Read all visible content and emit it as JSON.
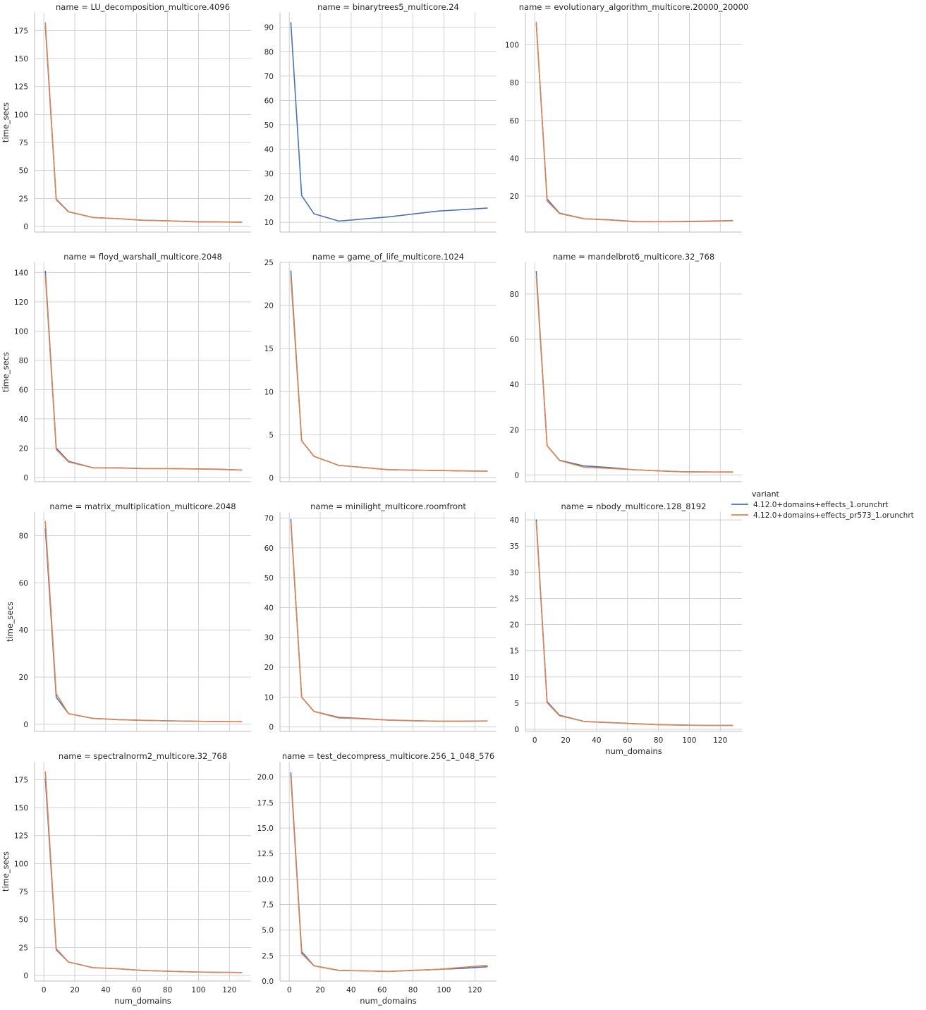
{
  "figure": {
    "legend": {
      "title": "variant",
      "placement": "right",
      "entries": [
        {
          "label": "4.12.0+domains+effects_1.orunchrt",
          "color": "#4c72b0"
        },
        {
          "label": "4.12.0+domains+effects_pr573_1.orunchrt",
          "color": "#dd8452"
        }
      ]
    },
    "grid": true,
    "style": "seaborn whitegrid facet grid"
  },
  "chart_data": [
    {
      "type": "line",
      "title": "name = LU_decomposition_multicore.4096",
      "xlabel": "",
      "ylabel": "time_secs",
      "xlim": [
        -6,
        134
      ],
      "ylim": [
        -5,
        191
      ],
      "xticks": [
        0,
        20,
        40,
        60,
        80,
        100,
        120
      ],
      "show_xticklabels": false,
      "yticks": [
        0,
        25,
        50,
        75,
        100,
        125,
        150,
        175
      ],
      "yticklabels": [
        "0",
        "25",
        "50",
        "75",
        "100",
        "125",
        "150",
        "175"
      ],
      "series": [
        {
          "name": "4.12.0+domains+effects_1.orunchrt",
          "color": "#4c72b0",
          "x": [
            1,
            8,
            16,
            32,
            48,
            64,
            80,
            96,
            112,
            128
          ],
          "y": [
            179,
            24,
            13,
            8,
            7,
            5.5,
            5,
            4.2,
            4,
            3.8
          ]
        },
        {
          "name": "4.12.0+domains+effects_pr573_1.orunchrt",
          "color": "#dd8452",
          "x": [
            1,
            8,
            16,
            32,
            48,
            64,
            80,
            96,
            112,
            128
          ],
          "y": [
            182,
            24.5,
            13.2,
            8,
            7,
            5.6,
            5,
            4.3,
            4.1,
            3.9
          ]
        }
      ]
    },
    {
      "type": "line",
      "title": "name = binarytrees5_multicore.24",
      "xlabel": "",
      "ylabel": "",
      "xlim": [
        -6,
        134
      ],
      "ylim": [
        6,
        96
      ],
      "xticks": [
        0,
        20,
        40,
        60,
        80,
        100,
        120
      ],
      "show_xticklabels": false,
      "yticks": [
        10,
        20,
        30,
        40,
        50,
        60,
        70,
        80,
        90
      ],
      "yticklabels": [
        "10",
        "20",
        "30",
        "40",
        "50",
        "60",
        "70",
        "80",
        "90"
      ],
      "series": [
        {
          "name": "4.12.0+domains+effects_1.orunchrt",
          "color": "#4c72b0",
          "x": [
            1,
            8,
            16,
            32,
            64,
            96,
            128
          ],
          "y": [
            92,
            21,
            13.5,
            10.5,
            12.2,
            14.6,
            15.8
          ]
        }
      ]
    },
    {
      "type": "line",
      "title": "name = evolutionary_algorithm_multicore.20000_20000",
      "xlabel": "",
      "ylabel": "",
      "xlim": [
        -6,
        134
      ],
      "ylim": [
        1,
        117
      ],
      "xticks": [
        0,
        20,
        40,
        60,
        80,
        100,
        120
      ],
      "show_xticklabels": false,
      "yticks": [
        20,
        40,
        60,
        80,
        100
      ],
      "yticklabels": [
        "20",
        "40",
        "60",
        "80",
        "100"
      ],
      "series": [
        {
          "name": "4.12.0+domains+effects_1.orunchrt",
          "color": "#4c72b0",
          "x": [
            1,
            8,
            16,
            32,
            48,
            64,
            80,
            96,
            112,
            128
          ],
          "y": [
            111,
            18.5,
            11,
            8,
            7.5,
            6.6,
            6.5,
            6.5,
            6.7,
            7
          ]
        },
        {
          "name": "4.12.0+domains+effects_pr573_1.orunchrt",
          "color": "#dd8452",
          "x": [
            1,
            8,
            16,
            32,
            48,
            64,
            80,
            96,
            112,
            128
          ],
          "y": [
            112,
            17.5,
            10.8,
            8,
            7.4,
            6.5,
            6.5,
            6.6,
            6.8,
            7.1
          ]
        }
      ]
    },
    {
      "type": "line",
      "title": "name = floyd_warshall_multicore.2048",
      "xlabel": "",
      "ylabel": "time_secs",
      "xlim": [
        -6,
        134
      ],
      "ylim": [
        -3,
        147
      ],
      "xticks": [
        0,
        20,
        40,
        60,
        80,
        100,
        120
      ],
      "show_xticklabels": false,
      "yticks": [
        0,
        20,
        40,
        60,
        80,
        100,
        120,
        140
      ],
      "yticklabels": [
        "0",
        "20",
        "40",
        "60",
        "80",
        "100",
        "120",
        "140"
      ],
      "series": [
        {
          "name": "4.12.0+domains+effects_1.orunchrt",
          "color": "#4c72b0",
          "x": [
            1,
            8,
            16,
            32,
            48,
            64,
            80,
            96,
            112,
            128
          ],
          "y": [
            141,
            20,
            11,
            6.5,
            6.5,
            6,
            6,
            5.8,
            5.6,
            5
          ]
        },
        {
          "name": "4.12.0+domains+effects_pr573_1.orunchrt",
          "color": "#dd8452",
          "x": [
            1,
            8,
            16,
            32,
            48,
            64,
            80,
            96,
            112,
            128
          ],
          "y": [
            138,
            19,
            10.5,
            6.5,
            6.4,
            6,
            6,
            5.8,
            5.5,
            5
          ]
        }
      ]
    },
    {
      "type": "line",
      "title": "name = game_of_life_multicore.1024",
      "xlabel": "",
      "ylabel": "",
      "xlim": [
        -6,
        134
      ],
      "ylim": [
        -0.45,
        25
      ],
      "xticks": [
        0,
        20,
        40,
        60,
        80,
        100,
        120
      ],
      "show_xticklabels": false,
      "yticks": [
        0,
        5,
        10,
        15,
        20,
        25
      ],
      "yticklabels": [
        "0",
        "5",
        "10",
        "15",
        "20",
        "25"
      ],
      "series": [
        {
          "name": "4.12.0+domains+effects_1.orunchrt",
          "color": "#4c72b0",
          "x": [
            1,
            8,
            16,
            32,
            48,
            64,
            80,
            96,
            112,
            128
          ],
          "y": [
            24,
            4.3,
            2.5,
            1.45,
            1.2,
            0.95,
            0.9,
            0.85,
            0.8,
            0.78
          ]
        },
        {
          "name": "4.12.0+domains+effects_pr573_1.orunchrt",
          "color": "#dd8452",
          "x": [
            1,
            8,
            16,
            32,
            48,
            64,
            80,
            96,
            112,
            128
          ],
          "y": [
            23.3,
            4.3,
            2.5,
            1.45,
            1.2,
            0.95,
            0.9,
            0.85,
            0.8,
            0.78
          ]
        }
      ]
    },
    {
      "type": "line",
      "title": "name = mandelbrot6_multicore.32_768",
      "xlabel": "",
      "ylabel": "",
      "xlim": [
        -6,
        134
      ],
      "ylim": [
        -3,
        94
      ],
      "xticks": [
        0,
        20,
        40,
        60,
        80,
        100,
        120
      ],
      "show_xticklabels": false,
      "yticks": [
        0,
        20,
        40,
        60,
        80
      ],
      "yticklabels": [
        "0",
        "20",
        "40",
        "60",
        "80"
      ],
      "series": [
        {
          "name": "4.12.0+domains+effects_1.orunchrt",
          "color": "#4c72b0",
          "x": [
            1,
            8,
            16,
            32,
            48,
            64,
            80,
            96,
            112,
            128
          ],
          "y": [
            90,
            13,
            6.5,
            4,
            3.3,
            2.3,
            1.8,
            1.4,
            1.3,
            1.3
          ]
        },
        {
          "name": "4.12.0+domains+effects_pr573_1.orunchrt",
          "color": "#dd8452",
          "x": [
            1,
            8,
            16,
            32,
            48,
            64,
            80,
            96,
            112,
            128
          ],
          "y": [
            88,
            13,
            6.4,
            3.4,
            2.9,
            2.3,
            1.8,
            1.4,
            1.3,
            1.2
          ]
        }
      ]
    },
    {
      "type": "line",
      "title": "name = matrix_multiplication_multicore.2048",
      "xlabel": "",
      "ylabel": "time_secs",
      "xlim": [
        -6,
        134
      ],
      "ylim": [
        -3,
        90
      ],
      "xticks": [
        0,
        20,
        40,
        60,
        80,
        100,
        120
      ],
      "show_xticklabels": false,
      "yticks": [
        0,
        20,
        40,
        60,
        80
      ],
      "yticklabels": [
        "0",
        "20",
        "40",
        "60",
        "80"
      ],
      "series": [
        {
          "name": "4.12.0+domains+effects_1.orunchrt",
          "color": "#4c72b0",
          "x": [
            1,
            8,
            16,
            32,
            48,
            64,
            80,
            96,
            112,
            128
          ],
          "y": [
            83,
            11.5,
            4.5,
            2.5,
            2,
            1.7,
            1.5,
            1.3,
            1.2,
            1.1
          ]
        },
        {
          "name": "4.12.0+domains+effects_pr573_1.orunchrt",
          "color": "#dd8452",
          "x": [
            1,
            8,
            16,
            32,
            48,
            64,
            80,
            96,
            112,
            128
          ],
          "y": [
            86,
            13,
            4.5,
            2.5,
            2,
            1.7,
            1.5,
            1.3,
            1.2,
            1.1
          ]
        }
      ]
    },
    {
      "type": "line",
      "title": "name = minilight_multicore.roomfront",
      "xlabel": "",
      "ylabel": "",
      "xlim": [
        -6,
        134
      ],
      "ylim": [
        -1.5,
        72
      ],
      "xticks": [
        0,
        20,
        40,
        60,
        80,
        100,
        120
      ],
      "show_xticklabels": false,
      "yticks": [
        0,
        10,
        20,
        30,
        40,
        50,
        60,
        70
      ],
      "yticklabels": [
        "0",
        "10",
        "20",
        "30",
        "40",
        "50",
        "60",
        "70"
      ],
      "series": [
        {
          "name": "4.12.0+domains+effects_1.orunchrt",
          "color": "#4c72b0",
          "x": [
            1,
            8,
            16,
            32,
            48,
            64,
            80,
            96,
            112,
            128
          ],
          "y": [
            69.5,
            10,
            5.2,
            3.2,
            2.8,
            2.3,
            2.1,
            1.9,
            1.9,
            2
          ]
        },
        {
          "name": "4.12.0+domains+effects_pr573_1.orunchrt",
          "color": "#dd8452",
          "x": [
            1,
            8,
            16,
            32,
            48,
            64,
            80,
            96,
            112,
            128
          ],
          "y": [
            68.5,
            10,
            5.2,
            3,
            2.7,
            2.3,
            2.1,
            1.9,
            1.9,
            2
          ]
        }
      ]
    },
    {
      "type": "line",
      "title": "name = nbody_multicore.128_8192",
      "xlabel": "num_domains",
      "ylabel": "",
      "xlim": [
        -6,
        134
      ],
      "ylim": [
        -0.4,
        41.5
      ],
      "xticks": [
        0,
        20,
        40,
        60,
        80,
        100,
        120
      ],
      "xticklabels": [
        "0",
        "20",
        "40",
        "60",
        "80",
        "100",
        "120"
      ],
      "show_xticklabels": true,
      "yticks": [
        0,
        5,
        10,
        15,
        20,
        25,
        30,
        35,
        40
      ],
      "yticklabels": [
        "0",
        "5",
        "10",
        "15",
        "20",
        "25",
        "30",
        "35",
        "40"
      ],
      "series": [
        {
          "name": "4.12.0+domains+effects_1.orunchrt",
          "color": "#4c72b0",
          "x": [
            1,
            8,
            16,
            32,
            48,
            64,
            80,
            96,
            112,
            128
          ],
          "y": [
            40,
            5.3,
            2.7,
            1.5,
            1.3,
            1.1,
            0.9,
            0.8,
            0.75,
            0.75
          ]
        },
        {
          "name": "4.12.0+domains+effects_pr573_1.orunchrt",
          "color": "#dd8452",
          "x": [
            1,
            8,
            16,
            32,
            48,
            64,
            80,
            96,
            112,
            128
          ],
          "y": [
            39.5,
            5.1,
            2.6,
            1.5,
            1.3,
            1.05,
            0.9,
            0.8,
            0.75,
            0.75
          ]
        }
      ]
    },
    {
      "type": "line",
      "title": "name = spectralnorm2_multicore.32_768",
      "xlabel": "num_domains",
      "ylabel": "time_secs",
      "xlim": [
        -6,
        134
      ],
      "ylim": [
        -5,
        191
      ],
      "xticks": [
        0,
        20,
        40,
        60,
        80,
        100,
        120
      ],
      "xticklabels": [
        "0",
        "20",
        "40",
        "60",
        "80",
        "100",
        "120"
      ],
      "show_xticklabels": true,
      "yticks": [
        0,
        25,
        50,
        75,
        100,
        125,
        150,
        175
      ],
      "yticklabels": [
        "0",
        "25",
        "50",
        "75",
        "100",
        "125",
        "150",
        "175"
      ],
      "series": [
        {
          "name": "4.12.0+domains+effects_1.orunchrt",
          "color": "#4c72b0",
          "x": [
            1,
            8,
            16,
            32,
            48,
            64,
            80,
            96,
            112,
            128
          ],
          "y": [
            176,
            23,
            12,
            7,
            6,
            4.5,
            3.8,
            3.2,
            2.8,
            2.7
          ]
        },
        {
          "name": "4.12.0+domains+effects_pr573_1.orunchrt",
          "color": "#dd8452",
          "x": [
            1,
            8,
            16,
            32,
            48,
            64,
            80,
            96,
            112,
            128
          ],
          "y": [
            182,
            24,
            12,
            7,
            6,
            4.5,
            3.8,
            3.2,
            2.8,
            2.7
          ]
        }
      ]
    },
    {
      "type": "line",
      "title": "name = test_decompress_multicore.256_1_048_576",
      "xlabel": "num_domains",
      "ylabel": "",
      "xlim": [
        -6,
        134
      ],
      "ylim": [
        0,
        21.5
      ],
      "xticks": [
        0,
        20,
        40,
        60,
        80,
        100,
        120
      ],
      "xticklabels": [
        "0",
        "20",
        "40",
        "60",
        "80",
        "100",
        "120"
      ],
      "show_xticklabels": true,
      "yticks": [
        0,
        2.5,
        5,
        7.5,
        10,
        12.5,
        15,
        17.5,
        20
      ],
      "yticklabels": [
        "0.0",
        "2.5",
        "5.0",
        "7.5",
        "10.0",
        "12.5",
        "15.0",
        "17.5",
        "20.0"
      ],
      "series": [
        {
          "name": "4.12.0+domains+effects_1.orunchrt",
          "color": "#4c72b0",
          "x": [
            1,
            8,
            16,
            32,
            48,
            64,
            80,
            96,
            112,
            128
          ],
          "y": [
            20.4,
            2.9,
            1.5,
            1.05,
            1,
            0.95,
            1.05,
            1.15,
            1.25,
            1.4
          ]
        },
        {
          "name": "4.12.0+domains+effects_pr573_1.orunchrt",
          "color": "#dd8452",
          "x": [
            1,
            8,
            16,
            32,
            48,
            64,
            80,
            96,
            112,
            128
          ],
          "y": [
            20,
            2.7,
            1.5,
            1.05,
            1,
            0.95,
            1.05,
            1.15,
            1.35,
            1.55
          ]
        }
      ]
    }
  ]
}
